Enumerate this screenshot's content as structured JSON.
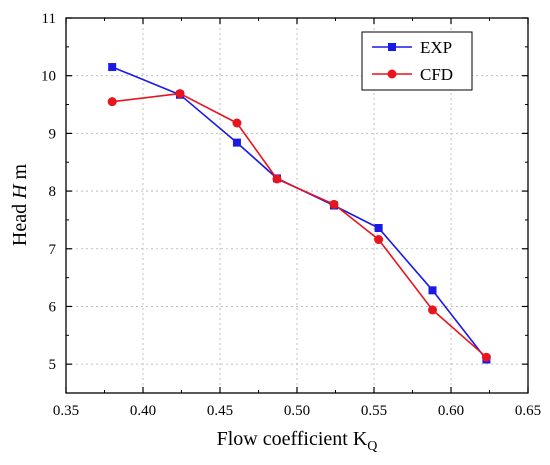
{
  "chart_data": {
    "type": "line",
    "title": "",
    "xlabel": "Flow coefficient K",
    "xlabel_subscript": "Q",
    "ylabel_prefix": "Head ",
    "ylabel_italic": "H",
    "ylabel_suffix": " m",
    "xlim": [
      0.35,
      0.65
    ],
    "ylim": [
      4.5,
      11
    ],
    "xticks": [
      "0.35",
      "0.40",
      "0.45",
      "0.50",
      "0.55",
      "0.60",
      "0.65"
    ],
    "yticks": [
      "5",
      "6",
      "7",
      "8",
      "9",
      "10",
      "11"
    ],
    "grid": true,
    "legend_position": "top-right",
    "series": [
      {
        "name": "EXP",
        "color": "#1a1ae6",
        "marker": "square",
        "x": [
          0.38,
          0.424,
          0.461,
          0.487,
          0.524,
          0.553,
          0.588,
          0.623
        ],
        "y": [
          10.15,
          9.67,
          8.84,
          8.22,
          7.75,
          7.36,
          6.28,
          5.08
        ]
      },
      {
        "name": "CFD",
        "color": "#e8141e",
        "marker": "circle",
        "x": [
          0.38,
          0.424,
          0.461,
          0.487,
          0.524,
          0.553,
          0.588,
          0.623
        ],
        "y": [
          9.55,
          9.69,
          9.18,
          8.21,
          7.77,
          7.16,
          5.94,
          5.12
        ]
      }
    ]
  }
}
